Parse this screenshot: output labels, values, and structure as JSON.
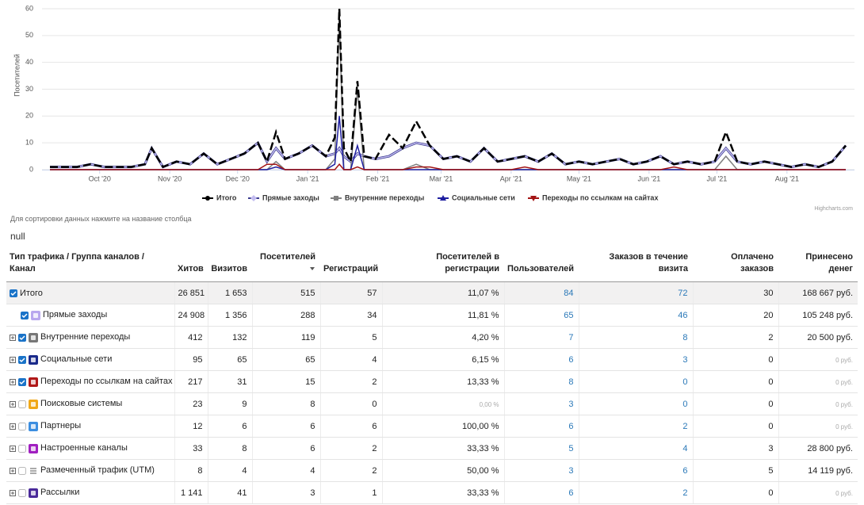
{
  "chart_data": {
    "type": "line",
    "y_label": "Посетителей",
    "x": [
      0,
      6,
      12,
      18,
      24,
      30,
      36,
      42,
      45,
      50,
      56,
      62,
      68,
      74,
      80,
      86,
      92,
      96,
      100,
      104,
      110,
      116,
      122,
      126,
      128,
      130,
      133,
      136,
      139,
      144,
      150,
      156,
      162,
      168,
      174,
      180,
      186,
      192,
      198,
      204,
      210,
      216,
      222,
      228,
      234,
      240,
      246,
      252,
      258,
      264,
      270,
      276,
      282,
      288,
      294,
      299,
      304,
      310,
      316,
      322,
      328,
      334,
      340,
      346,
      352
    ],
    "xlim": [
      0,
      352
    ],
    "xticks": [
      {
        "value": 22,
        "label": "Oct '20"
      },
      {
        "value": 53,
        "label": "Nov '20"
      },
      {
        "value": 83,
        "label": "Dec '20"
      },
      {
        "value": 114,
        "label": "Jan '21"
      },
      {
        "value": 145,
        "label": "Feb '21"
      },
      {
        "value": 173,
        "label": "Mar '21"
      },
      {
        "value": 204,
        "label": "Apr '21"
      },
      {
        "value": 234,
        "label": "May '21"
      },
      {
        "value": 265,
        "label": "Jun '21"
      },
      {
        "value": 295,
        "label": "Jul '21"
      },
      {
        "value": 326,
        "label": "Aug '21"
      }
    ],
    "ylim": [
      0,
      60
    ],
    "yticks": [
      0,
      10,
      20,
      30,
      40,
      50,
      60
    ],
    "grid": true,
    "series": [
      {
        "name": "Итого",
        "color": "#000000",
        "dashed": true,
        "values": [
          1,
          1,
          1,
          2,
          1,
          1,
          1,
          2,
          8,
          1,
          3,
          2,
          6,
          2,
          4,
          6,
          10,
          3,
          14,
          4,
          6,
          9,
          5,
          12,
          60,
          8,
          3,
          33,
          5,
          4,
          13,
          8,
          18,
          9,
          4,
          5,
          3,
          8,
          3,
          4,
          5,
          3,
          6,
          2,
          3,
          2,
          3,
          4,
          2,
          3,
          5,
          2,
          3,
          2,
          3,
          14,
          3,
          2,
          3,
          2,
          1,
          2,
          1,
          3,
          9
        ]
      },
      {
        "name": "Прямые заходы",
        "color": "#c4bdf0",
        "dashed": false,
        "values": [
          1,
          1,
          1,
          2,
          1,
          1,
          1,
          2,
          8,
          1,
          3,
          2,
          6,
          2,
          4,
          6,
          10,
          3,
          8,
          4,
          6,
          9,
          5,
          6,
          8,
          5,
          3,
          6,
          5,
          4,
          5,
          8,
          10,
          9,
          4,
          5,
          3,
          8,
          3,
          4,
          5,
          3,
          6,
          2,
          3,
          2,
          3,
          4,
          2,
          3,
          5,
          2,
          3,
          2,
          3,
          8,
          3,
          2,
          3,
          2,
          1,
          2,
          1,
          3,
          9
        ]
      },
      {
        "name": "Внутренние переходы",
        "color": "#808080",
        "dashed": false,
        "values": [
          0,
          0,
          0,
          0,
          0,
          0,
          0,
          0,
          0,
          0,
          0,
          0,
          0,
          0,
          0,
          0,
          0,
          0,
          3,
          0,
          0,
          0,
          0,
          4,
          57,
          0,
          0,
          30,
          0,
          0,
          0,
          0,
          2,
          0,
          0,
          0,
          0,
          0,
          0,
          0,
          0,
          0,
          0,
          0,
          0,
          0,
          0,
          0,
          0,
          0,
          0,
          0,
          0,
          0,
          0,
          5,
          0,
          0,
          0,
          0,
          0,
          0,
          0,
          0,
          0
        ]
      },
      {
        "name": "Социальные сети",
        "color": "#1f1fa0",
        "dashed": false,
        "values": [
          0,
          0,
          0,
          0,
          0,
          0,
          0,
          0,
          0,
          0,
          0,
          0,
          0,
          0,
          0,
          0,
          0,
          0,
          1,
          0,
          0,
          0,
          0,
          2,
          20,
          0,
          0,
          9,
          0,
          0,
          0,
          0,
          0,
          0,
          0,
          0,
          0,
          0,
          0,
          0,
          0,
          0,
          0,
          0,
          0,
          0,
          0,
          0,
          0,
          0,
          0,
          0,
          0,
          0,
          0,
          0,
          0,
          0,
          0,
          0,
          0,
          0,
          0,
          0,
          0
        ]
      },
      {
        "name": "Переходы по ссылкам на сайтах",
        "color": "#a31414",
        "dashed": false,
        "values": [
          0,
          0,
          0,
          0,
          0,
          0,
          0,
          0,
          0,
          0,
          0,
          0,
          0,
          0,
          0,
          0,
          0,
          2,
          2,
          0,
          0,
          0,
          0,
          0,
          2,
          0,
          0,
          1,
          0,
          0,
          0,
          0,
          1,
          1,
          0,
          0,
          0,
          0,
          0,
          0,
          1,
          0,
          0,
          0,
          0,
          0,
          0,
          0,
          0,
          0,
          0,
          1,
          0,
          0,
          0,
          0,
          0,
          0,
          0,
          0,
          0,
          0,
          0,
          0,
          0
        ]
      }
    ],
    "credits": "Highcharts.com"
  },
  "note": "Для сортировки данных нажмите на название столбца",
  "status": "null",
  "table": {
    "columns": [
      "Тип трафика / Группа каналов / Канал",
      "Хитов",
      "Визитов",
      "Посетителей",
      "Регистраций",
      "Посетителей в регистрации",
      "Пользователей",
      "Заказов в течение визита",
      "Оплачено заказов",
      "Принесено денег"
    ],
    "rows": [
      [
        "Итого",
        "26 851",
        "1 653",
        "515",
        "57",
        "11,07 %",
        "84",
        "72",
        "30",
        "168 667 руб."
      ],
      [
        "Прямые заходы",
        "24 908",
        "1 356",
        "288",
        "34",
        "11,81 %",
        "65",
        "46",
        "20",
        "105 248 руб."
      ],
      [
        "Внутренние переходы",
        "412",
        "132",
        "119",
        "5",
        "4,20 %",
        "7",
        "8",
        "2",
        "20 500 руб."
      ],
      [
        "Социальные сети",
        "95",
        "65",
        "65",
        "4",
        "6,15 %",
        "6",
        "3",
        "0",
        "0 руб."
      ],
      [
        "Переходы по ссылкам на сайтах",
        "217",
        "31",
        "15",
        "2",
        "13,33 %",
        "8",
        "0",
        "0",
        "0 руб."
      ],
      [
        "Поисковые системы",
        "23",
        "9",
        "8",
        "0",
        "0,00 %",
        "3",
        "0",
        "0",
        "0 руб."
      ],
      [
        "Партнеры",
        "12",
        "6",
        "6",
        "6",
        "100,00 %",
        "6",
        "2",
        "0",
        "0 руб."
      ],
      [
        "Настроенные каналы",
        "33",
        "8",
        "6",
        "2",
        "33,33 %",
        "5",
        "4",
        "3",
        "28 800 руб."
      ],
      [
        "Размеченный трафик (UTM)",
        "8",
        "4",
        "4",
        "2",
        "50,00 %",
        "3",
        "6",
        "5",
        "14 119 руб."
      ],
      [
        "Рассылки",
        "1 141",
        "41",
        "3",
        "1",
        "33,33 %",
        "6",
        "2",
        "0",
        "0 руб."
      ]
    ]
  }
}
